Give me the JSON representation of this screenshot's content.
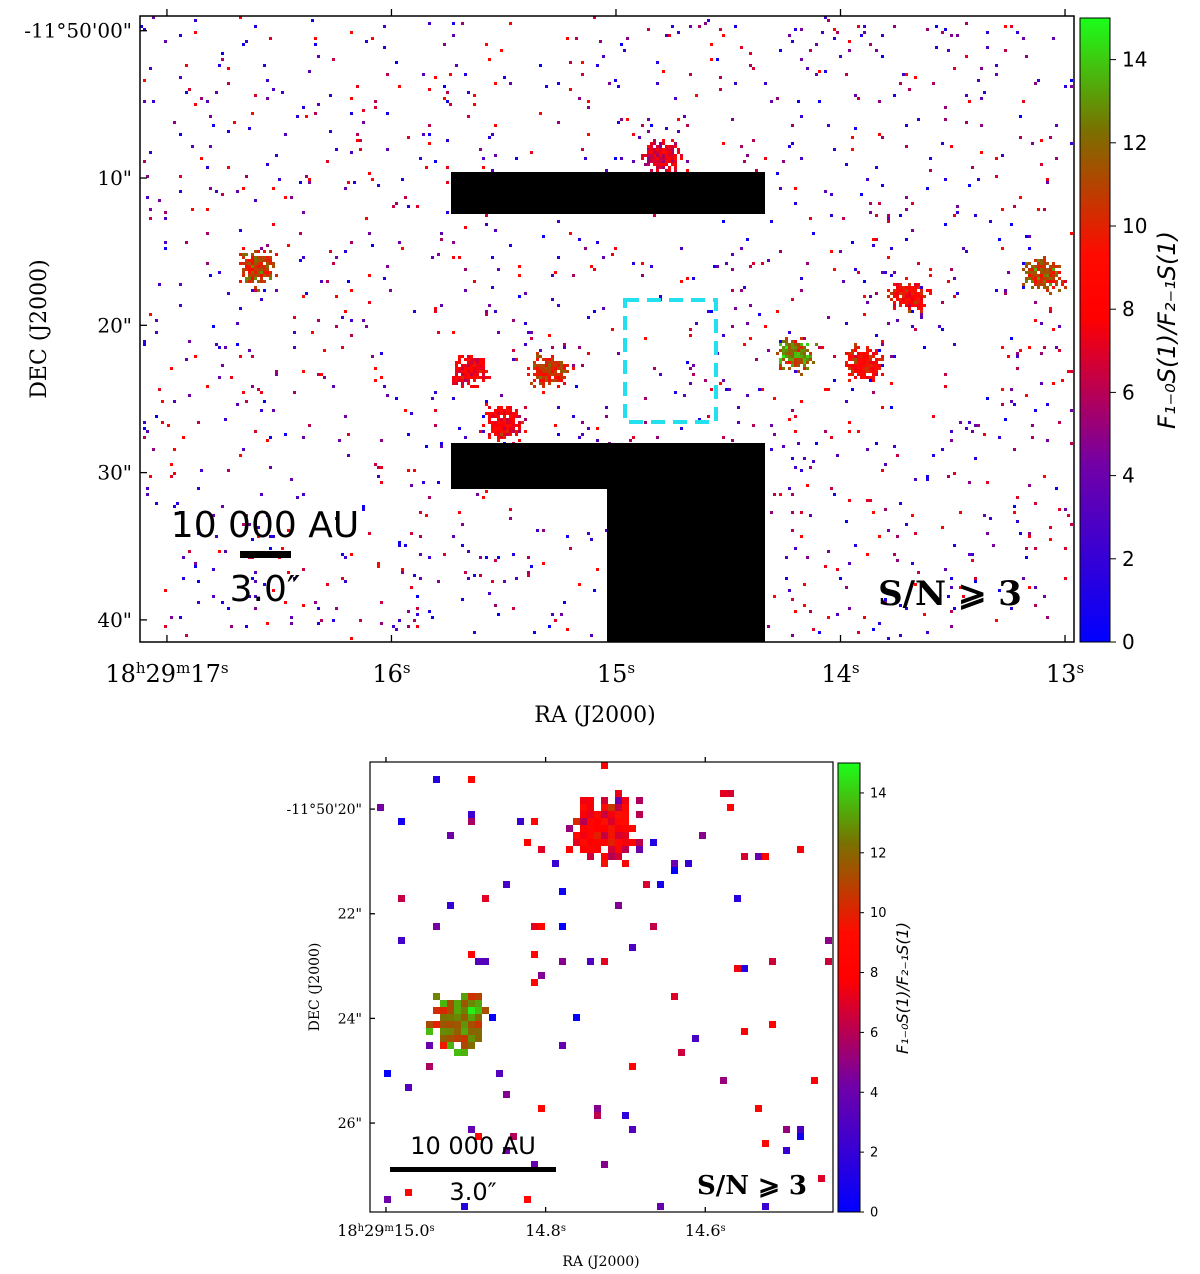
{
  "chart_data": [
    {
      "type": "heatmap",
      "panel": "top",
      "xlabel": "RA (J2000)",
      "ylabel": "DEC (J2000)",
      "xticks": [
        {
          "prefix": "18",
          "h": "h",
          "m_val": "29",
          "m": "m",
          "value": "17",
          "unit": "s",
          "ra_s": 17.0
        },
        {
          "value": "16",
          "unit": "s",
          "ra_s": 16.0
        },
        {
          "value": "15",
          "unit": "s",
          "ra_s": 15.0
        },
        {
          "value": "14",
          "unit": "s",
          "ra_s": 14.0
        },
        {
          "value": "13",
          "unit": "s",
          "ra_s": 13.0
        }
      ],
      "yticks": [
        {
          "label": "-11°50'00\"",
          "dec_arcsec": 0
        },
        {
          "label": "10\"",
          "dec_arcsec": 10
        },
        {
          "label": "20\"",
          "dec_arcsec": 20
        },
        {
          "label": "30\"",
          "dec_arcsec": 30
        },
        {
          "label": "40\"",
          "dec_arcsec": 40
        }
      ],
      "xlim_ra_s": [
        17.12,
        12.96
      ],
      "ylim_dec_arcsec": [
        -1.0,
        41.5
      ],
      "colorbar": {
        "label": "F₁₋₀S(1)/F₂₋₁S(1)",
        "range": [
          0,
          15
        ],
        "ticks": [
          "0",
          "2",
          "4",
          "6",
          "8",
          "10",
          "12",
          "14"
        ],
        "colors": [
          "#0000ff",
          "#7000a8",
          "#ff0000",
          "#1aff1a"
        ]
      },
      "scalebar": {
        "top_label": "10 000 AU",
        "bottom_label": "3.0″"
      },
      "snr_label": "S/N ⩾ 3",
      "inset_box_color": "#22e0ee",
      "emission_knots": [
        {
          "ra_s": 16.6,
          "dec_arcsec": 16.0,
          "ratio": 11
        },
        {
          "ra_s": 15.3,
          "dec_arcsec": 23.0,
          "ratio": 10
        },
        {
          "ra_s": 15.65,
          "dec_arcsec": 23.0,
          "ratio": 8
        },
        {
          "ra_s": 15.5,
          "dec_arcsec": 26.5,
          "ratio": 8
        },
        {
          "ra_s": 14.2,
          "dec_arcsec": 22.0,
          "ratio": 12
        },
        {
          "ra_s": 13.9,
          "dec_arcsec": 22.5,
          "ratio": 9
        },
        {
          "ra_s": 13.7,
          "dec_arcsec": 18.0,
          "ratio": 9
        },
        {
          "ra_s": 13.1,
          "dec_arcsec": 16.5,
          "ratio": 11
        },
        {
          "ra_s": 14.8,
          "dec_arcsec": 8.5,
          "ratio": 7
        }
      ]
    },
    {
      "type": "heatmap",
      "panel": "bottom",
      "xlabel": "RA (J2000)",
      "ylabel": "DEC (J2000)",
      "xticks": [
        {
          "prefix": "18",
          "h": "h",
          "m_val": "29",
          "m": "m",
          "value": "15.0",
          "unit": "s",
          "ra_s": 15.0
        },
        {
          "value": "14.8",
          "unit": "s",
          "ra_s": 14.8
        },
        {
          "value": "14.6",
          "unit": "s",
          "ra_s": 14.6
        }
      ],
      "yticks": [
        {
          "label": "-11°50'20\"",
          "dec_arcsec": 20
        },
        {
          "label": "22\"",
          "dec_arcsec": 22
        },
        {
          "label": "24\"",
          "dec_arcsec": 24
        },
        {
          "label": "26\"",
          "dec_arcsec": 26
        }
      ],
      "xlim_ra_s": [
        15.02,
        14.44
      ],
      "ylim_dec_arcsec": [
        19.1,
        27.7
      ],
      "colorbar": {
        "label": "F₁₋₀S(1)/F₂₋₁S(1)",
        "range": [
          0,
          15
        ],
        "ticks": [
          "0",
          "2",
          "4",
          "6",
          "8",
          "10",
          "12",
          "14"
        ]
      },
      "scalebar": {
        "top_label": "10 000 AU",
        "bottom_label": "3.0″"
      },
      "snr_label": "S/N ⩾ 3",
      "emission_knots": [
        {
          "ra_s": 14.73,
          "dec_arcsec": 20.3,
          "ratio": 8
        },
        {
          "ra_s": 14.91,
          "dec_arcsec": 24.0,
          "ratio": 12
        }
      ]
    }
  ]
}
